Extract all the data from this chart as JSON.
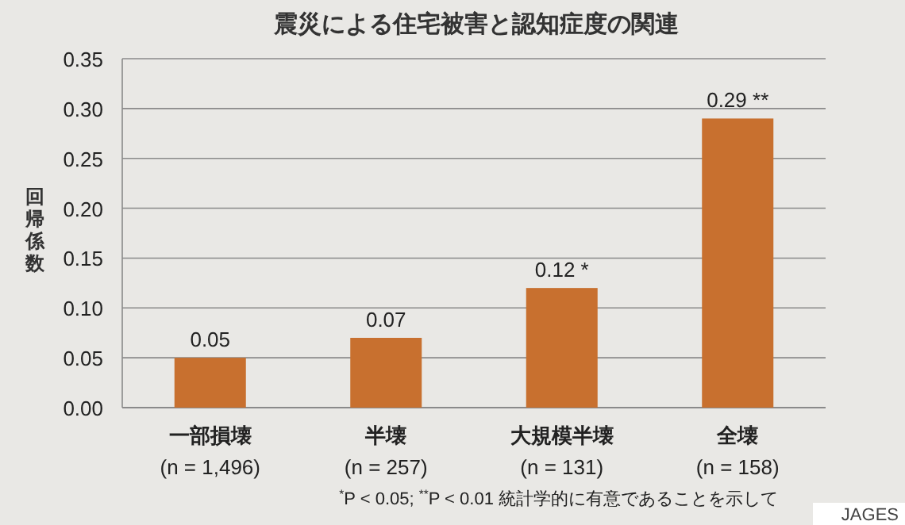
{
  "chart_data": {
    "type": "bar",
    "title": "震災による住宅被害と認知症度の関連",
    "ylabel": "回帰係数",
    "categories": [
      "一部損壊\n(n = 1,496)",
      "半壊\n(n = 257)",
      "大規模半壊\n(n = 131)",
      "全壊\n(n = 158)"
    ],
    "values": [
      0.05,
      0.07,
      0.12,
      0.29
    ],
    "value_labels": [
      "0.05",
      "0.07",
      "0.12 *",
      "0.29 **"
    ],
    "color": "#c8702f",
    "ylim": [
      0,
      0.35
    ],
    "yticks": [
      {
        "value": 0,
        "label": "0.00"
      },
      {
        "value": 0.05,
        "label": "0.05"
      },
      {
        "value": 0.1,
        "label": "0.10"
      },
      {
        "value": 0.15,
        "label": "0.15"
      },
      {
        "value": 0.2,
        "label": "0.20"
      },
      {
        "value": 0.25,
        "label": "0.25"
      },
      {
        "value": 0.3,
        "label": "0.30"
      },
      {
        "value": 0.35,
        "label": "0.35"
      }
    ],
    "grid": "y",
    "annotations": [
      "$^{*}$P < 0.05; $^{**}$P < 0.01 統計学的に有意であることを示して",
      "JAGES"
    ]
  }
}
